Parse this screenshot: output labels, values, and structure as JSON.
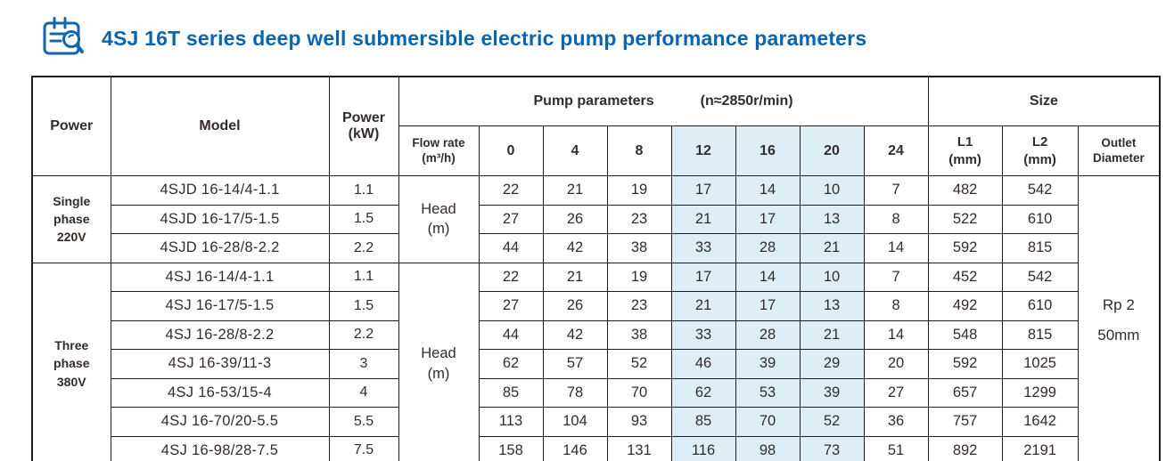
{
  "title": {
    "text": "4SJ 16T series deep well submersible electric pump performance parameters"
  },
  "colors": {
    "title_blue": "#0a65b0",
    "icon_blue": "#1266ad",
    "border_dark": "#241b18",
    "text_dark": "#342c29",
    "highlight_blue": "#ddeef7"
  },
  "table": {
    "header": {
      "power_group": "Power",
      "model": "Model",
      "power_kw": "Power\n(kW)",
      "pump_parameters": "Pump parameters",
      "speed_note": "(n≈2850r/min)",
      "size": "Size",
      "flow_rate": "Flow rate\n(m³/h)",
      "flow_values": [
        "0",
        "4",
        "8",
        "12",
        "16",
        "20",
        "24"
      ],
      "highlighted_flow_values": [
        "12",
        "16",
        "20"
      ],
      "l1": "L1\n(mm)",
      "l2": "L2\n(mm)",
      "outlet_diameter": "Outlet\nDiameter"
    },
    "head_unit_label": "Head\n(m)",
    "outlet_value": "Rp 2\n50mm",
    "groups": [
      {
        "power_label": "Single\nphase\n220V",
        "rows": [
          {
            "model": "4SJD 16-14/4-1.1",
            "kw": "1.1",
            "head": [
              22,
              21,
              19,
              17,
              14,
              10,
              7
            ],
            "l1": "482",
            "l2": "542"
          },
          {
            "model": "4SJD 16-17/5-1.5",
            "kw": "1.5",
            "head": [
              27,
              26,
              23,
              21,
              17,
              13,
              8
            ],
            "l1": "522",
            "l2": "610"
          },
          {
            "model": "4SJD 16-28/8-2.2",
            "kw": "2.2",
            "head": [
              44,
              42,
              38,
              33,
              28,
              21,
              14
            ],
            "l1": "592",
            "l2": "815"
          }
        ]
      },
      {
        "power_label": "Three\nphase\n380V",
        "rows": [
          {
            "model": "4SJ 16-14/4-1.1",
            "kw": "1.1",
            "head": [
              22,
              21,
              19,
              17,
              14,
              10,
              7
            ],
            "l1": "452",
            "l2": "542"
          },
          {
            "model": "4SJ 16-17/5-1.5",
            "kw": "1.5",
            "head": [
              27,
              26,
              23,
              21,
              17,
              13,
              8
            ],
            "l1": "492",
            "l2": "610"
          },
          {
            "model": "4SJ 16-28/8-2.2",
            "kw": "2.2",
            "head": [
              44,
              42,
              38,
              33,
              28,
              21,
              14
            ],
            "l1": "548",
            "l2": "815"
          },
          {
            "model": "4SJ 16-39/11-3",
            "kw": "3",
            "head": [
              62,
              57,
              52,
              46,
              39,
              29,
              20
            ],
            "l1": "592",
            "l2": "1025"
          },
          {
            "model": "4SJ 16-53/15-4",
            "kw": "4",
            "head": [
              85,
              78,
              70,
              62,
              53,
              39,
              27
            ],
            "l1": "657",
            "l2": "1299"
          },
          {
            "model": "4SJ 16-70/20-5.5",
            "kw": "5.5",
            "head": [
              113,
              104,
              93,
              85,
              70,
              52,
              36
            ],
            "l1": "757",
            "l2": "1642"
          },
          {
            "model": "4SJ 16-98/28-7.5",
            "kw": "7.5",
            "head": [
              158,
              146,
              131,
              116,
              98,
              73,
              51
            ],
            "l1": "892",
            "l2": "2191"
          }
        ]
      }
    ]
  }
}
